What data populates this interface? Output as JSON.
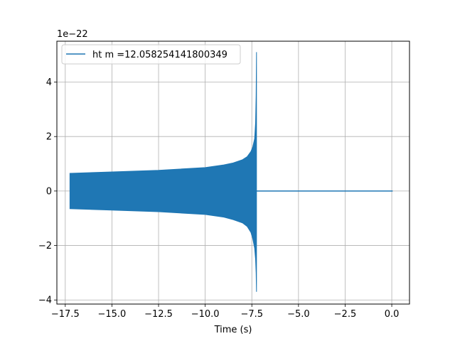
{
  "chart_data": {
    "type": "line",
    "title": "",
    "xlabel": "Time (s)",
    "ylabel": "",
    "y_scale_label": "1e−22",
    "xlim": [
      -17.95,
      0.95
    ],
    "ylim": [
      -4.15,
      5.5
    ],
    "x_ticks": [
      -17.5,
      -15.0,
      -12.5,
      -10.0,
      -7.5,
      -5.0,
      -2.5,
      0.0
    ],
    "x_tick_labels": [
      "−17.5",
      "−15.0",
      "−12.5",
      "−10.0",
      "−7.5",
      "−5.0",
      "−2.5",
      "0.0"
    ],
    "y_ticks": [
      -4,
      -2,
      0,
      2,
      4
    ],
    "y_tick_labels": [
      "−4",
      "−2",
      "0",
      "2",
      "4"
    ],
    "grid": true,
    "legend_position": "top-left",
    "series": [
      {
        "name": "ht m =12.058254141800349",
        "color": "#1f77b4",
        "t_start": -17.25,
        "t_merger": -7.25,
        "t_end": 0.05,
        "upper_envelope": {
          "x": [
            -17.25,
            -15.0,
            -12.5,
            -10.0,
            -9.0,
            -8.5,
            -8.0,
            -7.75,
            -7.55,
            -7.45,
            -7.35,
            -7.3,
            -7.27,
            -7.25
          ],
          "y": [
            0.65,
            0.7,
            0.76,
            0.86,
            0.96,
            1.03,
            1.15,
            1.26,
            1.45,
            1.62,
            1.92,
            2.5,
            3.5,
            5.1
          ]
        },
        "lower_envelope": {
          "x": [
            -17.25,
            -15.0,
            -12.5,
            -10.0,
            -9.0,
            -8.5,
            -8.0,
            -7.75,
            -7.55,
            -7.45,
            -7.35,
            -7.3,
            -7.27,
            -7.25
          ],
          "y": [
            -0.65,
            -0.7,
            -0.76,
            -0.86,
            -0.96,
            -1.05,
            -1.17,
            -1.3,
            -1.52,
            -1.75,
            -2.1,
            -2.5,
            -3.0,
            -3.7
          ]
        },
        "post_merger_value": 0.0
      }
    ]
  }
}
